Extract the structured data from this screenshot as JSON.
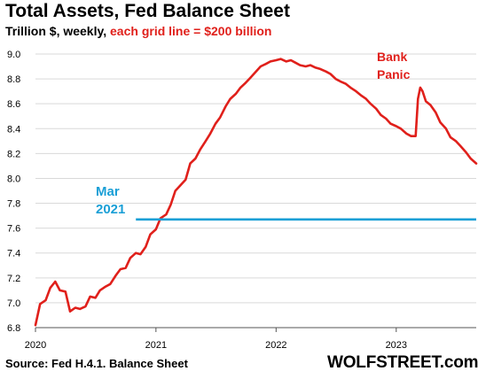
{
  "header": {
    "title": "Total Assets, Fed Balance Sheet",
    "subtitle_main": "Trillion $, weekly, ",
    "subtitle_highlight": "each grid line = $200 billion"
  },
  "footer": {
    "source": "Source: Fed H.4.1. Balance Sheet",
    "brand": "WOLFSTREET.com"
  },
  "colors": {
    "series": "#e0201b",
    "reference_line": "#1a9fd6",
    "grid": "#d9d9d9",
    "text": "#000000"
  },
  "chart_data": {
    "type": "line",
    "title": "Total Assets, Fed Balance Sheet",
    "ylabel": "Trillion $",
    "xlim": [
      "2020-01-01",
      "2023-09-01"
    ],
    "ylim": [
      6.8,
      9.0
    ],
    "yticks": [
      6.8,
      7.0,
      7.2,
      7.4,
      7.6,
      7.8,
      8.0,
      8.2,
      8.4,
      8.6,
      8.8,
      9.0
    ],
    "ytick_labels": [
      "6.8",
      "7.0",
      "7.2",
      "7.4",
      "7.6",
      "7.8",
      "8.0",
      "8.2",
      "8.4",
      "8.6",
      "8.8",
      "9.0"
    ],
    "xticks": [
      "2020-01-01",
      "2021-01-01",
      "2022-01-01",
      "2023-01-01"
    ],
    "xtick_labels": [
      "2020",
      "2021",
      "2022",
      "2023"
    ],
    "grid": "horizontal",
    "series": [
      {
        "x": [
          "2020-01-01",
          "2020-01-15",
          "2020-02-01",
          "2020-02-15",
          "2020-03-01",
          "2020-03-15",
          "2020-04-01",
          "2020-04-15",
          "2020-05-01",
          "2020-05-15",
          "2020-06-01",
          "2020-06-15",
          "2020-07-01",
          "2020-07-15",
          "2020-08-01",
          "2020-08-15",
          "2020-09-01",
          "2020-09-15",
          "2020-10-01",
          "2020-10-15",
          "2020-11-01",
          "2020-11-15",
          "2020-12-01",
          "2020-12-15",
          "2021-01-01",
          "2021-01-15",
          "2021-02-01",
          "2021-02-15",
          "2021-03-01",
          "2021-03-15",
          "2021-04-01",
          "2021-04-15",
          "2021-05-01",
          "2021-05-15",
          "2021-06-01",
          "2021-06-15",
          "2021-07-01",
          "2021-07-15",
          "2021-08-01",
          "2021-08-15",
          "2021-09-01",
          "2021-09-15",
          "2021-10-01",
          "2021-10-15",
          "2021-11-01",
          "2021-11-15",
          "2021-12-01",
          "2021-12-15",
          "2022-01-01",
          "2022-01-15",
          "2022-02-01",
          "2022-02-15",
          "2022-03-01",
          "2022-03-15",
          "2022-04-01",
          "2022-04-15",
          "2022-05-01",
          "2022-05-15",
          "2022-06-01",
          "2022-06-15",
          "2022-07-01",
          "2022-07-15",
          "2022-08-01",
          "2022-08-15",
          "2022-09-01",
          "2022-09-15",
          "2022-10-01",
          "2022-10-15",
          "2022-11-01",
          "2022-11-15",
          "2022-12-01",
          "2022-12-15",
          "2023-01-01",
          "2023-01-15",
          "2023-02-01",
          "2023-02-15",
          "2023-03-01",
          "2023-03-08",
          "2023-03-15",
          "2023-03-22",
          "2023-04-01",
          "2023-04-15",
          "2023-05-01",
          "2023-05-15",
          "2023-06-01",
          "2023-06-15",
          "2023-07-01",
          "2023-07-15",
          "2023-08-01",
          "2023-08-15",
          "2023-09-01"
        ],
        "y": [
          6.82,
          6.99,
          7.02,
          7.12,
          7.17,
          7.1,
          7.09,
          6.93,
          6.96,
          6.95,
          6.97,
          7.05,
          7.04,
          7.1,
          7.13,
          7.15,
          7.22,
          7.27,
          7.28,
          7.36,
          7.4,
          7.39,
          7.45,
          7.55,
          7.59,
          7.68,
          7.71,
          7.79,
          7.9,
          7.94,
          7.99,
          8.12,
          8.16,
          8.23,
          8.3,
          8.36,
          8.44,
          8.49,
          8.58,
          8.64,
          8.68,
          8.73,
          8.77,
          8.81,
          8.86,
          8.9,
          8.92,
          8.94,
          8.95,
          8.96,
          8.94,
          8.95,
          8.93,
          8.91,
          8.9,
          8.91,
          8.89,
          8.88,
          8.86,
          8.84,
          8.8,
          8.78,
          8.76,
          8.73,
          8.7,
          8.67,
          8.64,
          8.6,
          8.56,
          8.51,
          8.48,
          8.44,
          8.42,
          8.4,
          8.36,
          8.34,
          8.34,
          8.64,
          8.73,
          8.7,
          8.62,
          8.59,
          8.53,
          8.45,
          8.4,
          8.33,
          8.3,
          8.26,
          8.21,
          8.16,
          8.12
        ]
      }
    ],
    "reference_line": {
      "y": 7.67
    },
    "annotations": [
      {
        "lines": [
          "Mar",
          "2021"
        ],
        "color": "reference"
      },
      {
        "lines": [
          "Bank",
          "Panic"
        ],
        "color": "series"
      }
    ]
  }
}
